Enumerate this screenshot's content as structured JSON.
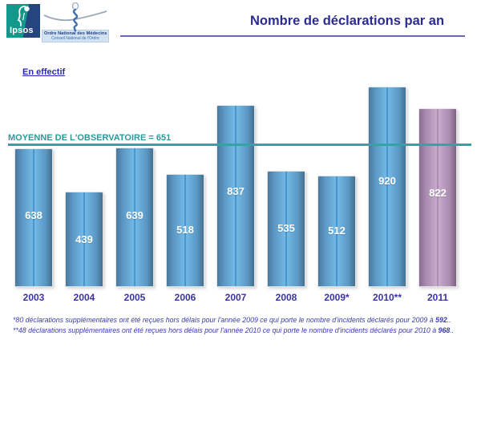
{
  "header": {
    "ipsos_logo_text": "Ipsos",
    "onm_logo_line1": "Ordre National des Médecins",
    "onm_logo_line2": "Conseil National de l'Ordre",
    "title": "Nombre de déclarations par an"
  },
  "subtitle": "En effectif",
  "footnotes": [
    {
      "text": "*80 déclarations supplémentaires ont été reçues hors délais pour l'année 2009 ce qui porte le nombre d'incidents déclarés pour 2009 à ",
      "bold": "592",
      "suffix": ".."
    },
    {
      "text": "**48 déclarations supplémentaires ont été reçues hors délais pour l'année 2010 ce qui porte le nombre d'incidents déclarés pour 2010 à ",
      "bold": "968",
      "suffix": ".."
    }
  ],
  "chart_data": {
    "type": "bar",
    "title": "Nombre de déclarations par an",
    "subtitle": "En effectif",
    "categories": [
      "2003",
      "2004",
      "2005",
      "2006",
      "2007",
      "2008",
      "2009*",
      "2010**",
      "2011"
    ],
    "values": [
      638,
      439,
      639,
      518,
      837,
      535,
      512,
      920,
      822
    ],
    "highlight_index": 8,
    "ylim": [
      0,
      950
    ],
    "grid": false,
    "legend": false,
    "xlabel": "",
    "ylabel": "",
    "bar_color": "#5b97c4",
    "highlight_color": "#b293b8",
    "value_label_color": "#ffffff",
    "category_label_color": "#3a34a3",
    "average_line": {
      "label": "MOYENNE DE L'OBSERVATOIRE = 651",
      "value": 651,
      "color": "#35a3a3"
    }
  }
}
